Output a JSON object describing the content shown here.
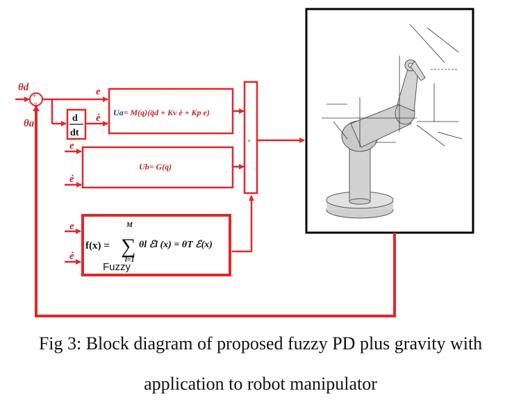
{
  "figure": {
    "caption_line1": "Fig 3: Block diagram of proposed fuzzy PD plus gravity with",
    "caption_line2": "application to robot manipulator"
  },
  "signals": {
    "theta_d": "θd",
    "theta_a": "θa",
    "e": "e",
    "e_dot": "ė"
  },
  "sum_junction": {
    "plus": "+",
    "minus": "−"
  },
  "derivative_block": {
    "numerator": "d",
    "denominator": "dt"
  },
  "ua_block": {
    "label": "Ua",
    "equation": "= M(q)(q̈d + Kv ė + Kp e)"
  },
  "ub_block": {
    "label": "Ub",
    "equation": "=   G(q)"
  },
  "fuzzy_block": {
    "lhs": "f(x) =",
    "sum_upper": "M",
    "sum_symbol": "∑",
    "sum_lower": "l=1",
    "rhs": "θl ℰl (x) =  θT ℰ(x)",
    "label": "Fuzzy"
  },
  "summation_block": {
    "plus_top": "+",
    "plus_bottom": "+"
  },
  "colors": {
    "signal_line": "#e3262b",
    "block_border": "#e3262b",
    "robot_frame": "#000000"
  },
  "robot": {
    "icon": "robot-manipulator-icon"
  }
}
